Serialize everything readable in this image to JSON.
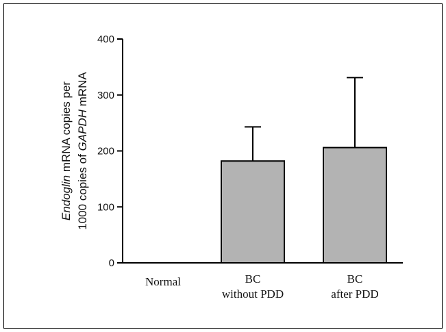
{
  "chart_data": {
    "type": "bar",
    "categories": [
      [
        "Normal"
      ],
      [
        "BC",
        "without PDD"
      ],
      [
        "BC",
        "after PDD"
      ]
    ],
    "values": [
      0,
      182,
      206
    ],
    "error_upper": [
      0,
      243,
      331
    ],
    "ylim": [
      0,
      400
    ],
    "yticks": [
      0,
      100,
      200,
      300,
      400
    ],
    "ylabel_line1": {
      "italic": "Endoglin",
      "rest": " mRNA copies per"
    },
    "ylabel_line2": {
      "prefix": "1000 copies of ",
      "italic": "GAPDH",
      "suffix": " mRNA"
    },
    "bar_color": "#b3b3b3",
    "grid": false
  }
}
